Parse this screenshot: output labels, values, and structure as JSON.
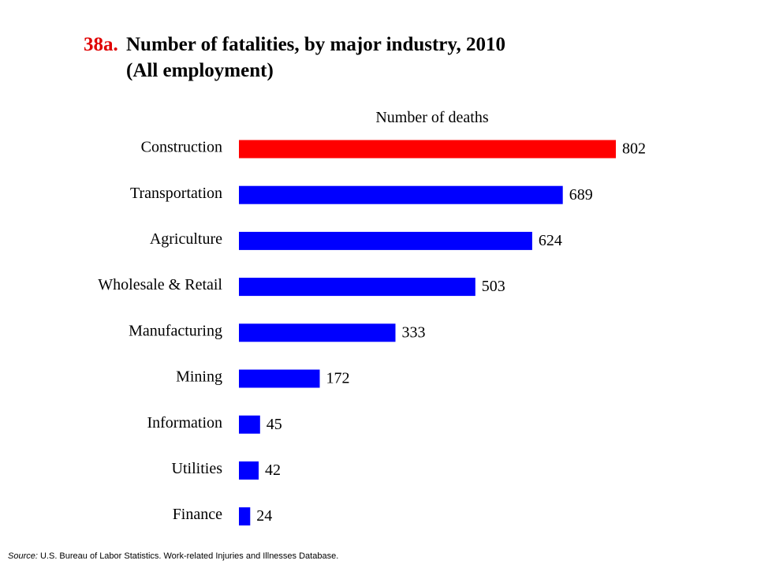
{
  "title": {
    "number": "38a.",
    "line1": "Number of fatalities, by major industry, 2010",
    "line2": "(All employment)"
  },
  "source": {
    "label": "Source:",
    "text": "U.S.  Bureau of Labor Statistics.  Work-related Injuries and Illnesses Database."
  },
  "colors": {
    "highlight": "#ff0000",
    "bar": "#0000ff",
    "title_number": "#e00000"
  },
  "chart_data": {
    "type": "bar",
    "orientation": "horizontal",
    "value_axis_label": "Number of deaths",
    "categories": [
      "Construction",
      "Transportation",
      "Agriculture",
      "Wholesale & Retail",
      "Manufacturing",
      "Mining",
      "Information",
      "Utilities",
      "Finance"
    ],
    "values": [
      802,
      689,
      624,
      503,
      333,
      172,
      45,
      42,
      24
    ],
    "highlighted_category": "Construction",
    "xlim": [
      0,
      802
    ],
    "grid": false,
    "legend": "none",
    "data_labels": true
  }
}
